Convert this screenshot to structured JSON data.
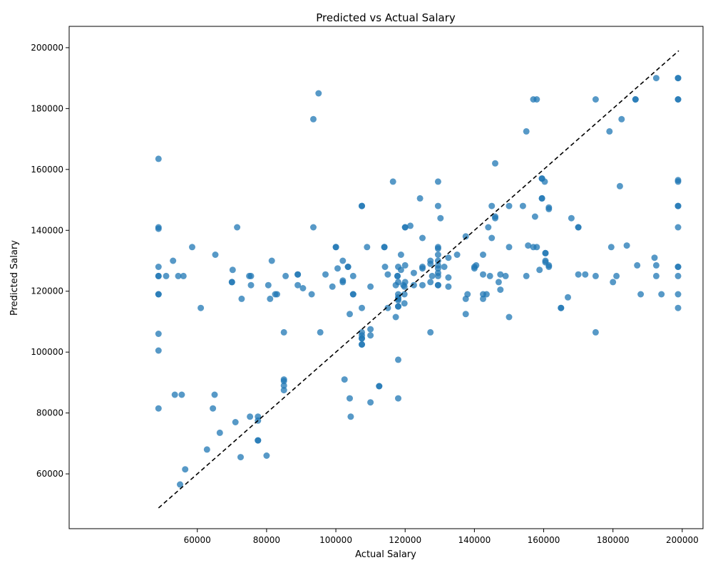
{
  "chart_data": {
    "type": "scatter",
    "title": "Predicted vs Actual Salary",
    "xlabel": "Actual Salary",
    "ylabel": "Predicted Salary",
    "xlim": [
      23000,
      206000
    ],
    "ylim": [
      42000,
      207000
    ],
    "xticks": [
      60000,
      80000,
      100000,
      120000,
      140000,
      160000,
      180000,
      200000
    ],
    "yticks": [
      60000,
      80000,
      100000,
      120000,
      140000,
      160000,
      180000,
      200000
    ],
    "grid": false,
    "point_color": "#1f77b4",
    "reference_line": {
      "from": [
        48800,
        48800
      ],
      "to": [
        199000,
        199000
      ],
      "style": "dashed",
      "color": "#000000"
    },
    "points": [
      [
        48800,
        163500
      ],
      [
        48800,
        141000
      ],
      [
        48800,
        140500
      ],
      [
        48800,
        128000
      ],
      [
        48800,
        125000
      ],
      [
        48800,
        125000
      ],
      [
        48800,
        119000
      ],
      [
        48800,
        119000
      ],
      [
        48800,
        106000
      ],
      [
        48800,
        100500
      ],
      [
        48800,
        81500
      ],
      [
        51000,
        125000
      ],
      [
        53000,
        130000
      ],
      [
        53500,
        86000
      ],
      [
        54500,
        125000
      ],
      [
        55000,
        56500
      ],
      [
        55500,
        86000
      ],
      [
        56000,
        125000
      ],
      [
        56500,
        61500
      ],
      [
        58500,
        134500
      ],
      [
        61000,
        114500
      ],
      [
        62800,
        68000
      ],
      [
        64500,
        81500
      ],
      [
        65000,
        86000
      ],
      [
        65200,
        132000
      ],
      [
        66500,
        73500
      ],
      [
        70000,
        123000
      ],
      [
        70000,
        123000
      ],
      [
        70200,
        127000
      ],
      [
        71000,
        77000
      ],
      [
        71500,
        141000
      ],
      [
        72500,
        65500
      ],
      [
        72800,
        117500
      ],
      [
        75000,
        125000
      ],
      [
        75200,
        78800
      ],
      [
        75500,
        122000
      ],
      [
        75500,
        125000
      ],
      [
        77500,
        78800
      ],
      [
        77500,
        77500
      ],
      [
        77500,
        71000
      ],
      [
        77500,
        71000
      ],
      [
        80000,
        66000
      ],
      [
        80500,
        122000
      ],
      [
        81000,
        117500
      ],
      [
        81500,
        130000
      ],
      [
        82500,
        119000
      ],
      [
        83000,
        119000
      ],
      [
        85000,
        106500
      ],
      [
        85000,
        91000
      ],
      [
        85000,
        90500
      ],
      [
        85000,
        89000
      ],
      [
        85000,
        87500
      ],
      [
        85500,
        125000
      ],
      [
        89000,
        125500
      ],
      [
        89000,
        125500
      ],
      [
        89000,
        122000
      ],
      [
        90500,
        121000
      ],
      [
        93000,
        119000
      ],
      [
        93500,
        176500
      ],
      [
        93500,
        141000
      ],
      [
        95000,
        185000
      ],
      [
        95500,
        106500
      ],
      [
        97000,
        125500
      ],
      [
        99000,
        121500
      ],
      [
        100000,
        134500
      ],
      [
        100000,
        134500
      ],
      [
        100500,
        127500
      ],
      [
        102000,
        130000
      ],
      [
        102000,
        123500
      ],
      [
        102000,
        123000
      ],
      [
        102500,
        91000
      ],
      [
        103500,
        128000
      ],
      [
        103500,
        128000
      ],
      [
        104000,
        112500
      ],
      [
        104000,
        84800
      ],
      [
        104300,
        78800
      ],
      [
        105000,
        125000
      ],
      [
        105000,
        119000
      ],
      [
        105000,
        119000
      ],
      [
        107500,
        148000
      ],
      [
        107500,
        148000
      ],
      [
        107500,
        114500
      ],
      [
        107500,
        106500
      ],
      [
        107500,
        105500
      ],
      [
        107500,
        104500
      ],
      [
        107500,
        104500
      ],
      [
        107500,
        102500
      ],
      [
        107500,
        102500
      ],
      [
        109000,
        134500
      ],
      [
        110000,
        121500
      ],
      [
        110000,
        107500
      ],
      [
        110000,
        105500
      ],
      [
        110000,
        83500
      ],
      [
        112500,
        88800
      ],
      [
        112500,
        88800
      ],
      [
        114000,
        134500
      ],
      [
        114000,
        134500
      ],
      [
        114200,
        128000
      ],
      [
        115000,
        125500
      ],
      [
        115000,
        114500
      ],
      [
        116500,
        156000
      ],
      [
        117300,
        122000
      ],
      [
        117300,
        111500
      ],
      [
        117800,
        125000
      ],
      [
        117800,
        125000
      ],
      [
        118000,
        128000
      ],
      [
        118000,
        123000
      ],
      [
        118000,
        119000
      ],
      [
        118000,
        118000
      ],
      [
        118000,
        117500
      ],
      [
        118000,
        117000
      ],
      [
        118000,
        115000
      ],
      [
        118000,
        115000
      ],
      [
        118000,
        97500
      ],
      [
        118000,
        84800
      ],
      [
        118800,
        132000
      ],
      [
        118800,
        127000
      ],
      [
        119500,
        122000
      ],
      [
        119800,
        121500
      ],
      [
        119800,
        119000
      ],
      [
        119800,
        116000
      ],
      [
        120000,
        141000
      ],
      [
        120000,
        141000
      ],
      [
        120000,
        128500
      ],
      [
        120000,
        123000
      ],
      [
        121500,
        141500
      ],
      [
        122500,
        126000
      ],
      [
        122500,
        122000
      ],
      [
        124300,
        150500
      ],
      [
        125000,
        137500
      ],
      [
        125000,
        128000
      ],
      [
        125000,
        127500
      ],
      [
        125000,
        122000
      ],
      [
        127300,
        130000
      ],
      [
        127300,
        129000
      ],
      [
        127300,
        123000
      ],
      [
        127300,
        106500
      ],
      [
        127800,
        125000
      ],
      [
        129500,
        156000
      ],
      [
        129500,
        148000
      ],
      [
        129500,
        134500
      ],
      [
        129500,
        134000
      ],
      [
        129500,
        132000
      ],
      [
        129500,
        130000
      ],
      [
        129500,
        128500
      ],
      [
        129500,
        127500
      ],
      [
        129500,
        126000
      ],
      [
        129500,
        125000
      ],
      [
        129500,
        122000
      ],
      [
        129500,
        122000
      ],
      [
        130200,
        144000
      ],
      [
        131300,
        128000
      ],
      [
        132500,
        131000
      ],
      [
        132500,
        124500
      ],
      [
        132500,
        121500
      ],
      [
        135000,
        132000
      ],
      [
        137500,
        138000
      ],
      [
        137500,
        117500
      ],
      [
        137500,
        112500
      ],
      [
        138000,
        119000
      ],
      [
        140000,
        128000
      ],
      [
        140000,
        127500
      ],
      [
        140500,
        128500
      ],
      [
        142500,
        132000
      ],
      [
        142500,
        125500
      ],
      [
        142500,
        119000
      ],
      [
        142500,
        117500
      ],
      [
        143500,
        119000
      ],
      [
        144000,
        141000
      ],
      [
        144500,
        125000
      ],
      [
        145000,
        148000
      ],
      [
        145000,
        137500
      ],
      [
        146000,
        144500
      ],
      [
        146000,
        144000
      ],
      [
        146000,
        162000
      ],
      [
        147000,
        123000
      ],
      [
        147500,
        125500
      ],
      [
        147500,
        120500
      ],
      [
        149000,
        125000
      ],
      [
        150000,
        148000
      ],
      [
        150000,
        134500
      ],
      [
        150000,
        111500
      ],
      [
        154000,
        148000
      ],
      [
        155000,
        172500
      ],
      [
        155000,
        125000
      ],
      [
        155500,
        135000
      ],
      [
        157000,
        183000
      ],
      [
        157000,
        134500
      ],
      [
        157500,
        144500
      ],
      [
        158000,
        183000
      ],
      [
        158000,
        134500
      ],
      [
        158800,
        127000
      ],
      [
        159500,
        157000
      ],
      [
        159500,
        157000
      ],
      [
        159500,
        150500
      ],
      [
        159500,
        150500
      ],
      [
        160300,
        156000
      ],
      [
        160500,
        132500
      ],
      [
        160500,
        132500
      ],
      [
        160500,
        130000
      ],
      [
        160500,
        129500
      ],
      [
        161500,
        147500
      ],
      [
        161500,
        147000
      ],
      [
        161500,
        128500
      ],
      [
        161500,
        128000
      ],
      [
        165000,
        114500
      ],
      [
        165000,
        114500
      ],
      [
        167000,
        118000
      ],
      [
        168000,
        144000
      ],
      [
        170000,
        141000
      ],
      [
        170000,
        141000
      ],
      [
        170000,
        125500
      ],
      [
        172000,
        125500
      ],
      [
        175000,
        183000
      ],
      [
        175000,
        125000
      ],
      [
        175000,
        106500
      ],
      [
        179000,
        172500
      ],
      [
        179500,
        134500
      ],
      [
        180000,
        123000
      ],
      [
        181000,
        125000
      ],
      [
        182000,
        154500
      ],
      [
        182500,
        176500
      ],
      [
        184000,
        135000
      ],
      [
        186500,
        183000
      ],
      [
        186500,
        183000
      ],
      [
        187000,
        128500
      ],
      [
        188000,
        119000
      ],
      [
        192000,
        131000
      ],
      [
        192500,
        190000
      ],
      [
        192500,
        128500
      ],
      [
        192500,
        125000
      ],
      [
        194000,
        119000
      ],
      [
        198800,
        190000
      ],
      [
        198800,
        190000
      ],
      [
        198800,
        183000
      ],
      [
        198800,
        183000
      ],
      [
        198800,
        156500
      ],
      [
        198800,
        156000
      ],
      [
        198800,
        148000
      ],
      [
        198800,
        148000
      ],
      [
        198800,
        141000
      ],
      [
        198800,
        128000
      ],
      [
        198800,
        128000
      ],
      [
        198800,
        125000
      ],
      [
        198800,
        119000
      ],
      [
        198800,
        114500
      ]
    ]
  }
}
